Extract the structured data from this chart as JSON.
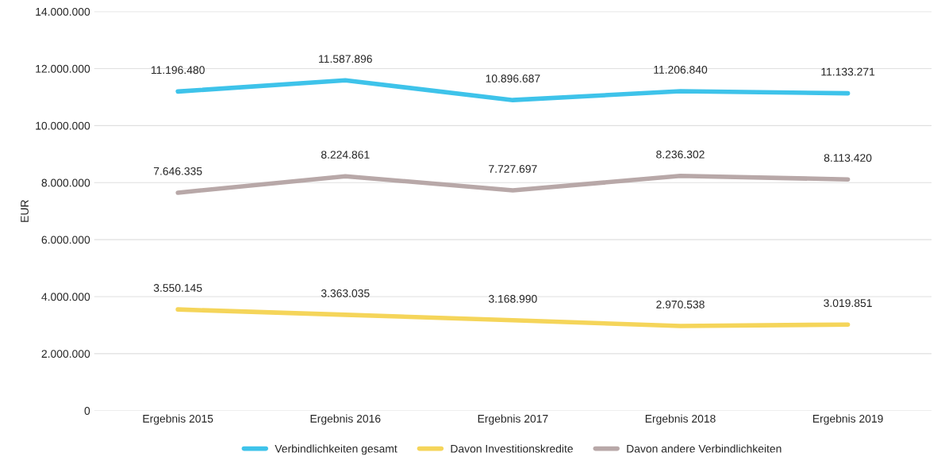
{
  "chart_data": {
    "type": "line",
    "ylabel": "EUR",
    "categories": [
      "Ergebnis 2015",
      "Ergebnis 2016",
      "Ergebnis 2017",
      "Ergebnis 2018",
      "Ergebnis 2019"
    ],
    "series": [
      {
        "name": "Verbindlichkeiten gesamt",
        "color": "#3ec3ea",
        "values": [
          11196480,
          11587896,
          10896687,
          11206840,
          11133271
        ],
        "value_labels": [
          "11.196.480",
          "11.587.896",
          "10.896.687",
          "11.206.840",
          "11.133.271"
        ]
      },
      {
        "name": "Davon Investitionskredite",
        "color": "#f5d55a",
        "values": [
          3550145,
          3363035,
          3168990,
          2970538,
          3019851
        ],
        "value_labels": [
          "3.550.145",
          "3.363.035",
          "3.168.990",
          "2.970.538",
          "3.019.851"
        ]
      },
      {
        "name": "Davon andere Verbindlichkeiten",
        "color": "#b8a8a8",
        "values": [
          7646335,
          8224861,
          7727697,
          8236302,
          8113420
        ],
        "value_labels": [
          "7.646.335",
          "8.224.861",
          "7.727.697",
          "8.236.302",
          "8.113.420"
        ]
      }
    ],
    "ylim": [
      0,
      14000000
    ],
    "yticks": [
      0,
      {
        "value": 2000000,
        "label": "2.000.000"
      },
      {
        "value": 4000000,
        "label": "4.000.000"
      },
      {
        "value": 6000000,
        "label": "6.000.000"
      },
      {
        "value": 8000000,
        "label": "8.000.000"
      },
      {
        "value": 10000000,
        "label": "10.000.000"
      },
      {
        "value": 12000000,
        "label": "12.000.000"
      },
      {
        "value": 14000000,
        "label": "14.000.000"
      }
    ],
    "grid": "y",
    "legend": "bottom",
    "marker": "none",
    "line_style": "solid"
  }
}
